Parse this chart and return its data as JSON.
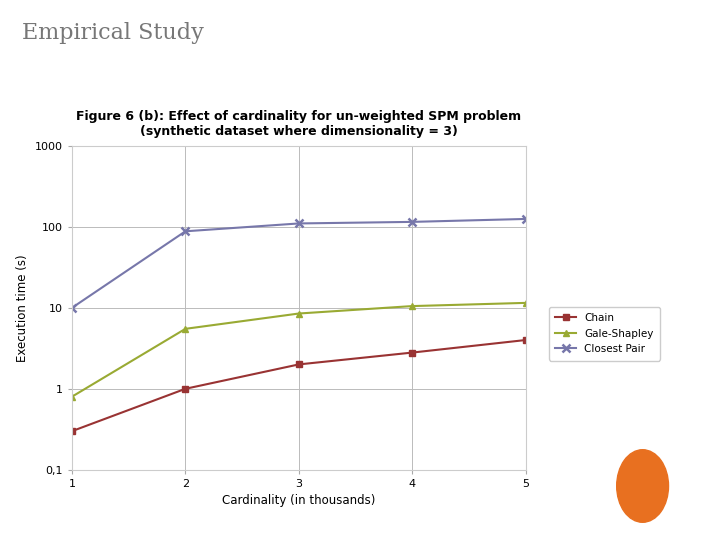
{
  "title_main": "Empirical Study",
  "title_chart": "Figure 6 (b): Effect of cardinality for un-weighted SPM problem\n(synthetic dataset where dimensionality = 3)",
  "xlabel": "Cardinality (in thousands)",
  "ylabel": "Execution time (s)",
  "x": [
    1,
    2,
    3,
    4,
    5
  ],
  "chain": [
    0.3,
    1.0,
    2.0,
    2.8,
    4.0
  ],
  "gale_shapley": [
    0.8,
    5.5,
    8.5,
    10.5,
    11.5
  ],
  "closest_pair": [
    10.0,
    88.0,
    110.0,
    115.0,
    125.0
  ],
  "chain_color": "#993333",
  "gale_shapley_color": "#99aa33",
  "closest_pair_color": "#7777aa",
  "ylim_bottom": 0.1,
  "ylim_top": 1000,
  "xlim_left": 1,
  "xlim_right": 5,
  "slide_bg": "#ffffff",
  "plot_bg_color": "#ffffff",
  "title_main_color": "#777777",
  "title_chart_color": "#000000",
  "grid_color": "#bbbbbb",
  "border_color": "#e8c8b8",
  "legend_labels": [
    "Chain",
    "Gale-Shapley",
    "Closest Pair"
  ],
  "orange_circle_color": "#e87020"
}
